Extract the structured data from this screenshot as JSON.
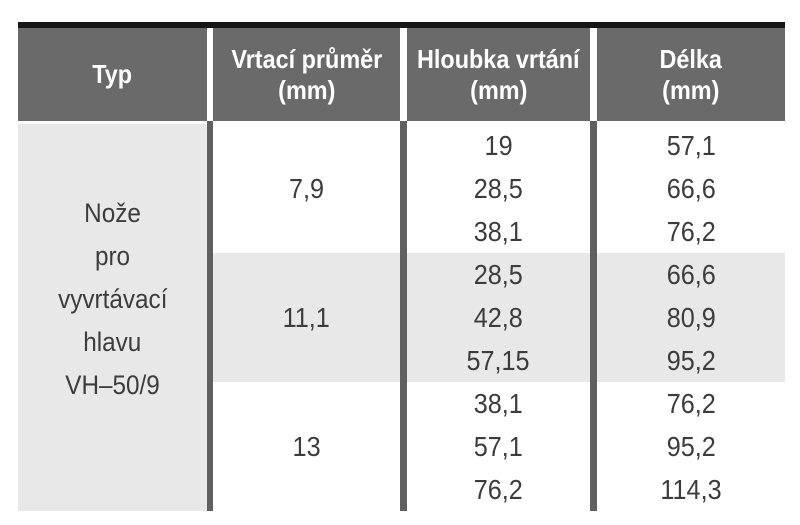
{
  "colors": {
    "top_bar": "#171717",
    "header_bg": "#6a6a6a",
    "header_text": "#ffffff",
    "body_separator": "#606062",
    "shaded_row_bg": "#e8e8e8",
    "row_bg": "#ffffff",
    "body_text": "#3c3c3c"
  },
  "table": {
    "columns": [
      {
        "label": "Typ",
        "unit": ""
      },
      {
        "label": "Vrtací průměr",
        "unit": "(mm)"
      },
      {
        "label": "Hloubka vrtání",
        "unit": "(mm)"
      },
      {
        "label": "Délka",
        "unit": "(mm)"
      }
    ],
    "type_lines": [
      "Nože",
      "pro",
      "vyvrtávací",
      "hlavu",
      "VH–50/9"
    ],
    "groups": [
      {
        "diameter": "7,9",
        "depths": [
          "19",
          "28,5",
          "38,1"
        ],
        "lengths": [
          "57,1",
          "66,6",
          "76,2"
        ]
      },
      {
        "diameter": "11,1",
        "depths": [
          "28,5",
          "42,8",
          "57,15"
        ],
        "lengths": [
          "66,6",
          "80,9",
          "95,2"
        ]
      },
      {
        "diameter": "13",
        "depths": [
          "38,1",
          "57,1",
          "76,2"
        ],
        "lengths": [
          "76,2",
          "95,2",
          "114,3"
        ]
      }
    ]
  }
}
